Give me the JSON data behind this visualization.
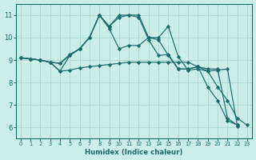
{
  "background_color": "#cceee8",
  "grid_color": "#aad8d0",
  "line_color": "#1a6b6b",
  "xlabel": "Humidex (Indice chaleur)",
  "xlim": [
    -0.5,
    23.5
  ],
  "ylim": [
    5.5,
    11.5
  ],
  "yticks": [
    6,
    7,
    8,
    9,
    10,
    11
  ],
  "xticks": [
    0,
    1,
    2,
    3,
    4,
    5,
    6,
    7,
    8,
    9,
    10,
    11,
    12,
    13,
    14,
    15,
    16,
    17,
    18,
    19,
    20,
    21,
    22,
    23
  ],
  "series": [
    {
      "x": [
        0,
        1,
        2,
        3,
        4,
        5,
        6,
        7,
        8,
        9,
        10,
        11,
        12,
        13,
        14,
        15,
        16,
        17,
        18,
        19,
        20,
        21,
        22
      ],
      "y": [
        9.1,
        9.05,
        9.0,
        8.9,
        8.5,
        8.55,
        8.65,
        8.7,
        8.75,
        8.8,
        8.85,
        8.9,
        8.9,
        8.9,
        8.9,
        8.9,
        8.9,
        8.9,
        8.7,
        8.6,
        8.6,
        6.4,
        6.1
      ]
    },
    {
      "x": [
        0,
        1,
        2,
        3,
        4,
        5,
        6,
        7,
        8,
        9,
        10,
        11,
        12,
        13,
        14,
        15,
        16,
        17,
        18,
        19,
        20,
        21,
        22
      ],
      "y": [
        9.1,
        9.05,
        9.0,
        8.9,
        8.5,
        9.2,
        9.5,
        10.0,
        11.0,
        10.4,
        9.5,
        9.65,
        9.65,
        10.0,
        9.9,
        9.2,
        8.6,
        8.6,
        8.7,
        7.8,
        7.2,
        6.3,
        6.1
      ]
    },
    {
      "x": [
        0,
        1,
        2,
        3,
        4,
        5,
        6,
        7,
        8,
        9,
        10,
        11,
        12,
        13,
        14,
        15,
        16,
        17,
        18,
        19,
        20,
        21,
        22,
        23
      ],
      "y": [
        9.1,
        9.05,
        9.0,
        8.9,
        8.85,
        9.25,
        9.5,
        10.0,
        11.0,
        10.5,
        11.0,
        11.0,
        10.9,
        9.9,
        9.2,
        9.25,
        8.6,
        8.6,
        8.7,
        8.5,
        7.8,
        7.2,
        6.4,
        6.1
      ]
    },
    {
      "x": [
        0,
        1,
        2,
        3,
        4,
        5,
        6,
        7,
        8,
        9,
        10,
        11,
        12,
        13,
        14,
        15,
        16,
        17,
        18,
        19,
        20,
        21,
        22
      ],
      "y": [
        9.1,
        9.05,
        9.0,
        8.9,
        8.85,
        9.2,
        9.5,
        10.0,
        11.0,
        10.5,
        10.9,
        11.0,
        11.0,
        10.0,
        10.0,
        10.5,
        9.15,
        8.55,
        8.6,
        8.5,
        8.55,
        8.6,
        6.05
      ]
    }
  ]
}
